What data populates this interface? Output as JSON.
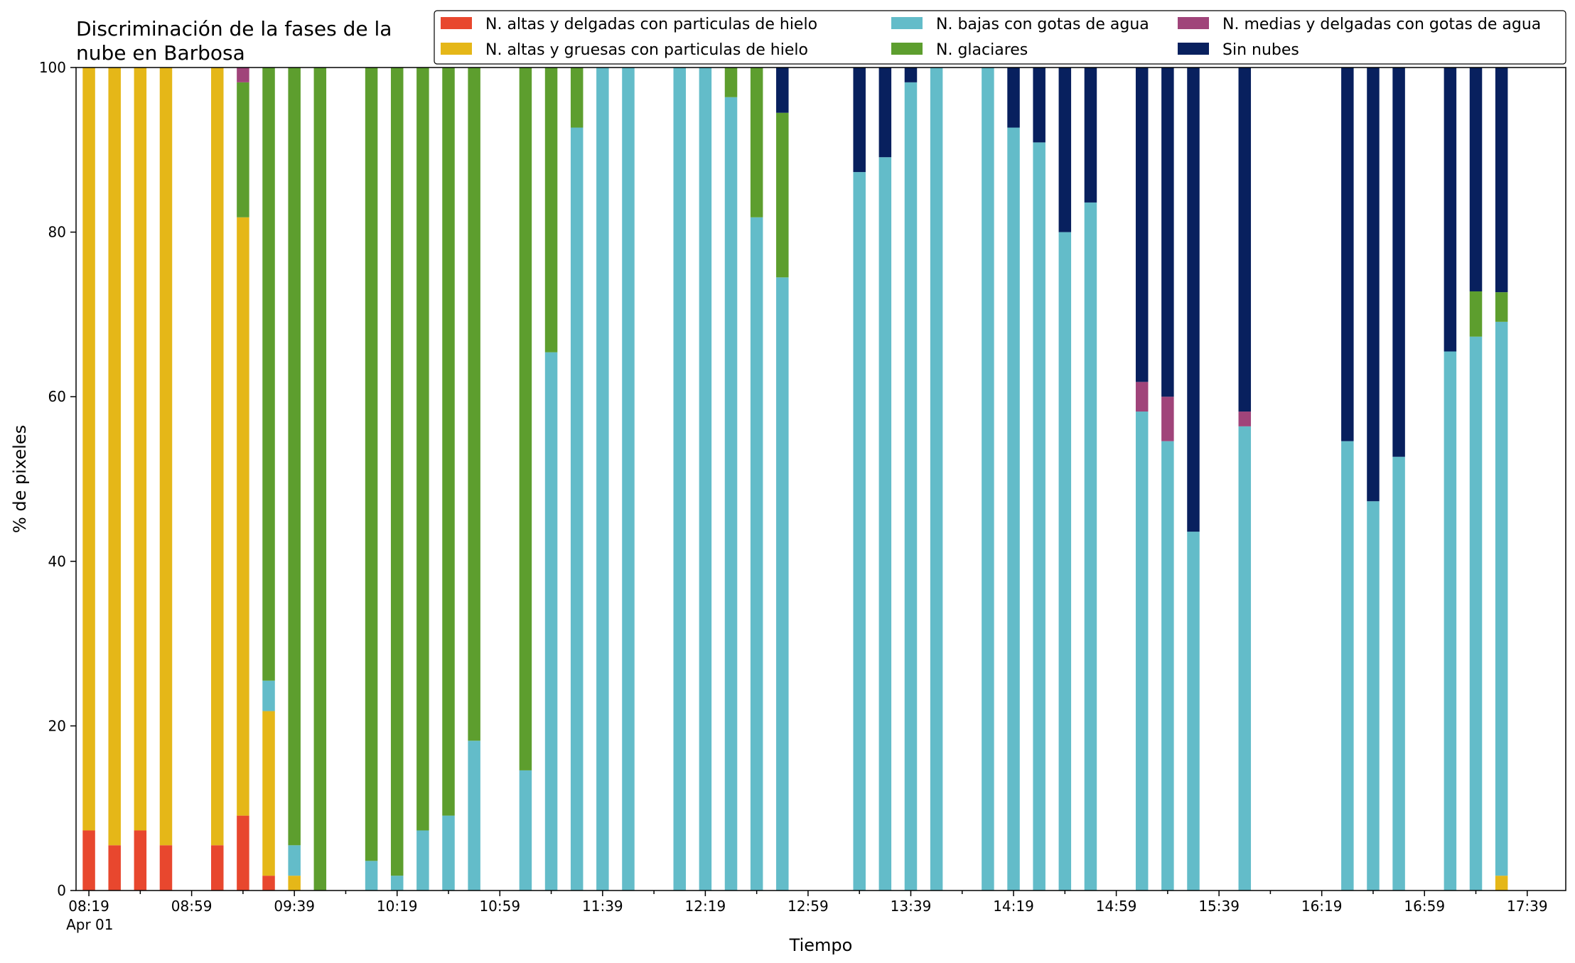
{
  "chart_data": {
    "type": "bar",
    "stacked": true,
    "title": "Discriminación de la fases de la\nnube en Barbosa",
    "xlabel": "Tiempo",
    "ylabel": "% de pixeles",
    "ylim": [
      0,
      100
    ],
    "yticks": [
      "0",
      "20",
      "40",
      "60",
      "80",
      "100"
    ],
    "xlim": [
      "08:14",
      "17:54"
    ],
    "x_tick_labels": [
      "08:19",
      "08:59",
      "09:39",
      "10:19",
      "10:59",
      "11:39",
      "12:19",
      "12:59",
      "13:39",
      "14:19",
      "14:59",
      "15:39",
      "16:19",
      "16:59",
      "17:39"
    ],
    "x_date_label": "Apr 01",
    "grid": false,
    "legend_position": "top-right",
    "x": [
      "08:19",
      "08:29",
      "08:39",
      "08:49",
      "09:09",
      "09:19",
      "09:29",
      "09:39",
      "09:49",
      "10:09",
      "10:19",
      "10:29",
      "10:39",
      "10:49",
      "11:09",
      "11:19",
      "11:29",
      "11:39",
      "11:49",
      "12:09",
      "12:19",
      "12:29",
      "12:39",
      "12:49",
      "13:19",
      "13:29",
      "13:39",
      "13:49",
      "14:09",
      "14:19",
      "14:29",
      "14:39",
      "14:49",
      "15:09",
      "15:19",
      "15:29",
      "15:49",
      "16:29",
      "16:39",
      "16:49",
      "17:09",
      "17:19",
      "17:29"
    ],
    "series": [
      {
        "name": "N. altas y delgadas con particulas de hielo",
        "color": "#e8472e",
        "values": [
          7.3,
          5.5,
          7.3,
          5.5,
          5.5,
          9.1,
          1.8,
          0,
          0,
          0,
          0,
          0,
          0,
          0,
          0,
          0,
          0,
          0,
          0,
          0,
          0,
          0,
          0,
          0,
          0,
          0,
          0,
          0,
          0,
          0,
          0,
          0,
          0,
          0,
          0,
          0,
          0,
          0,
          0,
          0,
          0,
          0,
          0
        ]
      },
      {
        "name": "N. altas y gruesas con particulas de hielo",
        "color": "#e5b718",
        "values": [
          92.7,
          94.5,
          92.7,
          94.5,
          94.5,
          72.7,
          20,
          1.8,
          0,
          0,
          0,
          0,
          0,
          0,
          0,
          0,
          0,
          0,
          0,
          0,
          0,
          0,
          0,
          0,
          0,
          0,
          0,
          0,
          0,
          0,
          0,
          0,
          0,
          0,
          0,
          0,
          0,
          0,
          0,
          0,
          0,
          0,
          1.8
        ]
      },
      {
        "name": "N. bajas con gotas de agua",
        "color": "#63bcc9",
        "values": [
          0,
          0,
          0,
          0,
          0,
          0,
          3.7,
          3.7,
          0,
          3.6,
          1.8,
          7.3,
          9.1,
          18.2,
          14.6,
          65.4,
          92.7,
          100,
          100,
          100,
          100,
          96.4,
          81.8,
          74.5,
          87.3,
          89.1,
          98.2,
          100,
          100,
          92.7,
          90.9,
          80,
          83.6,
          58.2,
          54.6,
          43.6,
          56.4,
          54.6,
          47.3,
          52.7,
          65.5,
          67.3,
          67.3
        ]
      },
      {
        "name": "N. glaciares",
        "color": "#5d9e2e",
        "values": [
          0,
          0,
          0,
          0,
          0,
          16.4,
          74.5,
          94.5,
          100,
          96.4,
          98.2,
          92.7,
          90.9,
          81.8,
          85.4,
          34.6,
          7.3,
          0,
          0,
          0,
          0,
          3.6,
          18.2,
          20,
          0,
          0,
          0,
          0,
          0,
          0,
          0,
          0,
          0,
          0,
          0,
          0,
          0,
          0,
          0,
          0,
          0,
          5.5,
          3.6
        ]
      },
      {
        "name": "N. medias y delgadas con gotas de agua",
        "color": "#a0447a",
        "values": [
          0,
          0,
          0,
          0,
          0,
          1.8,
          0,
          0,
          0,
          0,
          0,
          0,
          0,
          0,
          0,
          0,
          0,
          0,
          0,
          0,
          0,
          0,
          0,
          0,
          0,
          0,
          0,
          0,
          0,
          0,
          0,
          0,
          0,
          3.6,
          5.4,
          0,
          1.8,
          0,
          0,
          0,
          0,
          0,
          0
        ]
      },
      {
        "name": "Sin nubes",
        "color": "#08205e",
        "values": [
          0,
          0,
          0,
          0,
          0,
          0,
          0,
          0,
          0,
          0,
          0,
          0,
          0,
          0,
          0,
          0,
          0,
          0,
          0,
          0,
          0,
          0,
          0,
          5.5,
          12.7,
          10.9,
          1.8,
          0,
          0,
          7.3,
          9.1,
          20,
          16.4,
          38.2,
          40,
          56.4,
          41.8,
          45.4,
          52.7,
          47.3,
          34.5,
          27.2,
          27.3
        ]
      }
    ]
  }
}
